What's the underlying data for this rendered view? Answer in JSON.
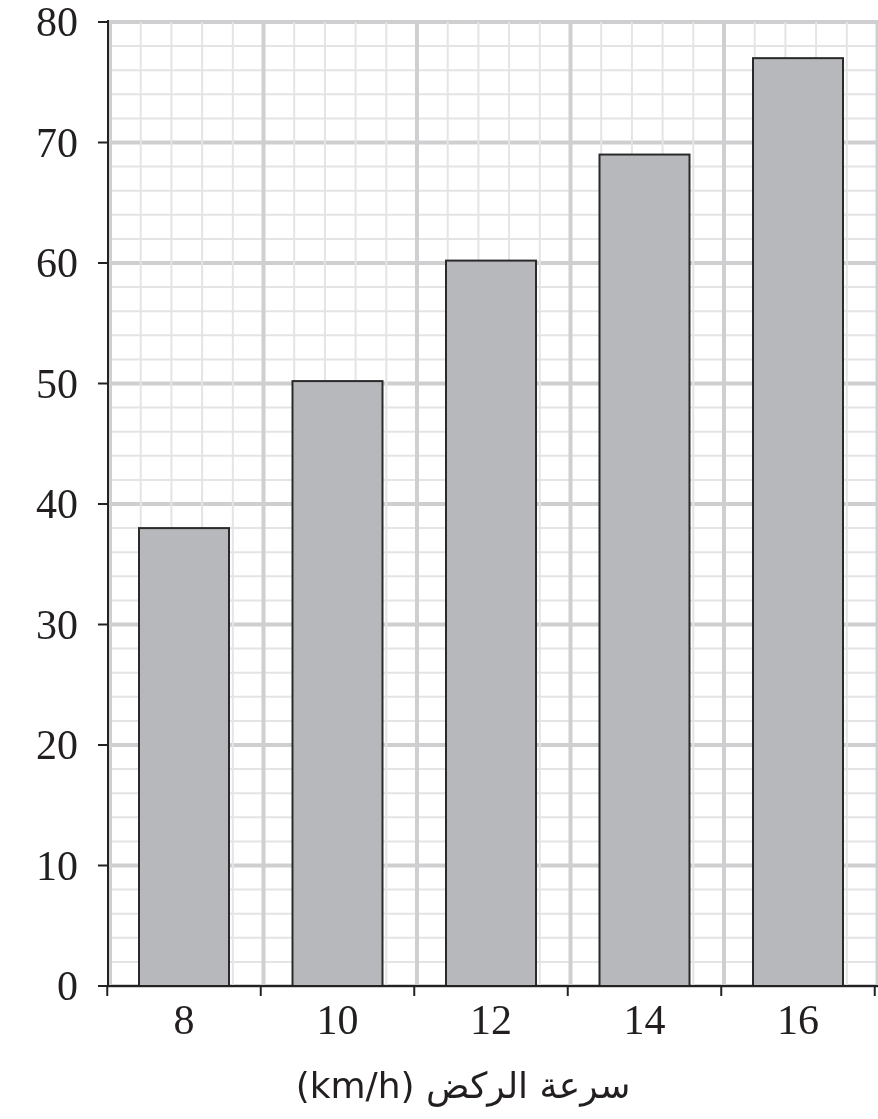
{
  "chart_data": {
    "type": "bar",
    "xlabel": "سرعة الركض (km/h)",
    "categories": [
      "8",
      "10",
      "12",
      "14",
      "16"
    ],
    "values": [
      38,
      50.2,
      60.2,
      69,
      77
    ],
    "color": "#b7b8bb",
    "ylim": [
      0,
      80
    ],
    "yticks": [
      0,
      10,
      20,
      30,
      40,
      50,
      60,
      70,
      80
    ],
    "grid": true
  }
}
